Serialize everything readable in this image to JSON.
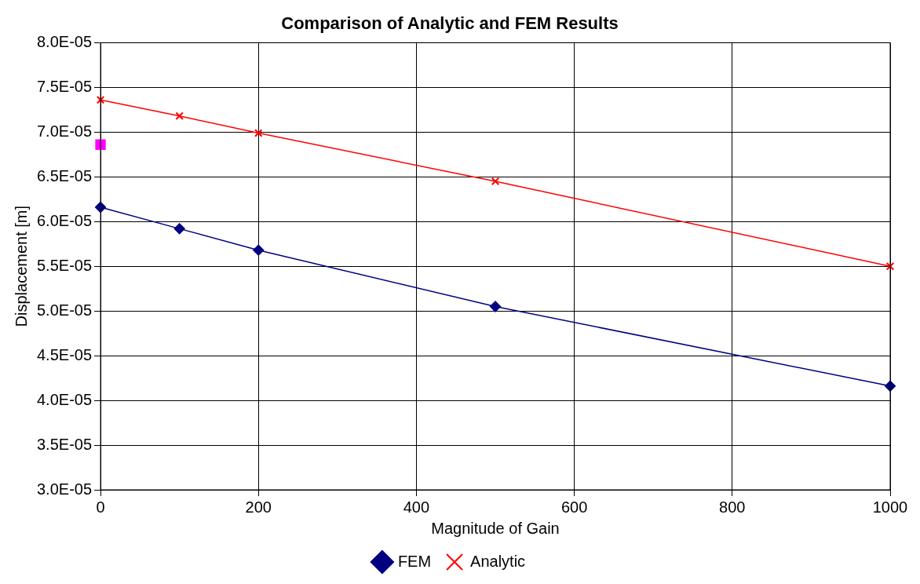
{
  "chart_data": {
    "type": "line",
    "title": "Comparison of Analytic and FEM Results",
    "xlabel": "Magnitude of Gain",
    "ylabel": "Displacement [m]",
    "x": [
      0,
      100,
      200,
      500,
      1000
    ],
    "series": [
      {
        "name": "FEM",
        "color": "#000080",
        "marker": "diamond",
        "values": [
          6.16e-05,
          5.92e-05,
          5.68e-05,
          5.05e-05,
          4.16e-05
        ]
      },
      {
        "name": "Analytic",
        "color": "#ff0000",
        "marker": "cross",
        "values": [
          7.36e-05,
          7.18e-05,
          6.99e-05,
          6.45e-05,
          5.5e-05
        ]
      },
      {
        "type": "scatter",
        "color": "#ff00ff",
        "marker": "square",
        "values": [
          6.86e-05,
          null,
          null,
          null,
          null
        ]
      }
    ],
    "xlim": [
      0,
      1000
    ],
    "xticks": [
      0,
      200,
      400,
      600,
      800,
      1000
    ],
    "ylim": [
      3e-05,
      8e-05
    ],
    "yticks": [
      {
        "value": 3e-05,
        "label": "3.0E-05"
      },
      {
        "value": 3.5e-05,
        "label": "3.5E-05"
      },
      {
        "value": 4e-05,
        "label": "4.0E-05"
      },
      {
        "value": 4.5e-05,
        "label": "4.5E-05"
      },
      {
        "value": 5e-05,
        "label": "5.0E-05"
      },
      {
        "value": 5.5e-05,
        "label": "5.5E-05"
      },
      {
        "value": 6e-05,
        "label": "6.0E-05"
      },
      {
        "value": 6.5e-05,
        "label": "6.5E-05"
      },
      {
        "value": 7e-05,
        "label": "7.0E-05"
      },
      {
        "value": 7.5e-05,
        "label": "7.5E-05"
      },
      {
        "value": 8e-05,
        "label": "8.0E-05"
      }
    ],
    "grid": true,
    "legend": "bottom"
  }
}
